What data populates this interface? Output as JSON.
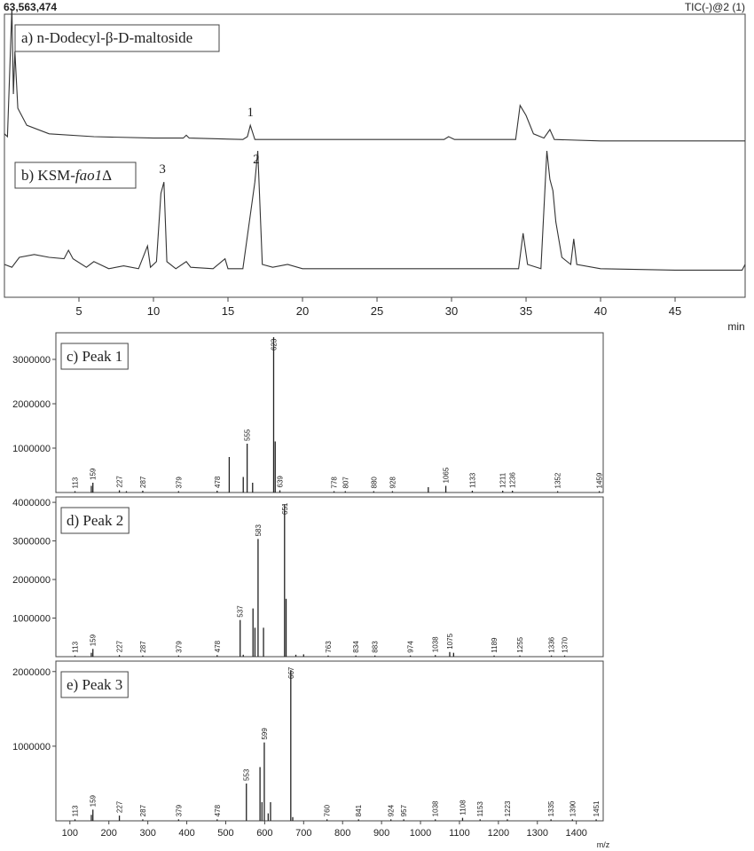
{
  "header": {
    "intensity": "63,563,474",
    "trace": "TIC(-)@2 (1)"
  },
  "chart_data": [
    {
      "type": "line",
      "title": "a) n-Dodecyl-β-D-maltoside",
      "x": [
        0,
        0.2,
        0.5,
        0.6,
        0.7,
        0.9,
        1.5,
        3,
        6,
        10,
        12,
        12.2,
        12.4,
        16,
        16.3,
        16.5,
        16.8,
        20,
        29.5,
        29.8,
        30.2,
        34.3,
        34.6,
        35,
        35.5,
        36.2,
        36.6,
        36.9,
        40,
        49.7
      ],
      "values": [
        12,
        10,
        100,
        40,
        70,
        30,
        18,
        12,
        10,
        9,
        9,
        11,
        9,
        8,
        10,
        18,
        8,
        8,
        8,
        10,
        8,
        8,
        32,
        25,
        12,
        9,
        15,
        8,
        7,
        7
      ],
      "xlim": [
        0,
        49.7
      ],
      "ylim": [
        0,
        100
      ],
      "color": "#333333",
      "annotations": [
        {
          "text": "1",
          "x": 16.5
        }
      ]
    },
    {
      "type": "line",
      "title": [
        "b) KSM-",
        "fao1",
        "Δ"
      ],
      "x": [
        0,
        0.5,
        1,
        2,
        3,
        4,
        4.3,
        4.6,
        5.5,
        6,
        7,
        8,
        9,
        9.6,
        9.8,
        10.2,
        10.5,
        10.7,
        10.9,
        11.5,
        12.2,
        12.5,
        14,
        14.8,
        15,
        16,
        16.8,
        17,
        17.3,
        18,
        19,
        20,
        25,
        30,
        34.5,
        34.8,
        35.1,
        36,
        36.4,
        36.6,
        36.8,
        37,
        37.4,
        38,
        38.2,
        38.4,
        40,
        45,
        49.5,
        49.7
      ],
      "values": [
        20,
        18,
        25,
        27,
        25,
        24,
        30,
        24,
        18,
        22,
        17,
        19,
        17,
        33,
        18,
        22,
        70,
        78,
        22,
        17,
        22,
        18,
        17,
        24,
        17,
        17,
        78,
        100,
        20,
        18,
        20,
        17,
        17,
        17,
        17,
        42,
        20,
        17,
        100,
        80,
        72,
        50,
        25,
        20,
        38,
        20,
        17,
        16,
        16,
        20
      ],
      "xlim": [
        0,
        49.7
      ],
      "ylim": [
        0,
        100
      ],
      "color": "#333333",
      "xticks": [
        5,
        10,
        15,
        20,
        25,
        30,
        35,
        40,
        45
      ],
      "xlabel": "min",
      "annotations": [
        {
          "text": "3",
          "x": 10.6
        },
        {
          "text": "2",
          "x": 16.9
        }
      ]
    },
    {
      "type": "stick",
      "title": "c) Peak 1",
      "x": [
        113,
        155,
        159,
        227,
        245,
        287,
        379,
        478,
        509,
        545,
        555,
        569,
        623,
        627,
        639,
        778,
        807,
        880,
        928,
        1020,
        1065,
        1133,
        1211,
        1236,
        1352,
        1459
      ],
      "values": [
        30000,
        150000,
        220000,
        50000,
        30000,
        40000,
        30000,
        40000,
        800000,
        350000,
        1100000,
        220000,
        3500000,
        1150000,
        50000,
        30000,
        30000,
        30000,
        30000,
        120000,
        150000,
        40000,
        40000,
        40000,
        30000,
        30000
      ],
      "x_labels": [
        113,
        null,
        159,
        227,
        null,
        287,
        379,
        478,
        null,
        null,
        555,
        null,
        623,
        null,
        639,
        778,
        807,
        880,
        928,
        null,
        1065,
        1133,
        1211,
        1236,
        1352,
        1459
      ],
      "xlim": [
        64,
        1469
      ],
      "ylim": [
        0,
        3600000
      ],
      "yticks": [
        1000000,
        2000000,
        3000000
      ],
      "color": "#222222"
    },
    {
      "type": "stick",
      "title": "d) Peak 2",
      "x": [
        113,
        155,
        159,
        227,
        287,
        379,
        478,
        537,
        545,
        570,
        575,
        583,
        597,
        651,
        655,
        680,
        700,
        763,
        834,
        883,
        974,
        1038,
        1075,
        1085,
        1189,
        1255,
        1336,
        1370
      ],
      "values": [
        30000,
        100000,
        200000,
        40000,
        30000,
        30000,
        40000,
        950000,
        50000,
        1250000,
        750000,
        3050000,
        750000,
        3950000,
        1500000,
        50000,
        60000,
        30000,
        30000,
        30000,
        30000,
        40000,
        120000,
        100000,
        30000,
        30000,
        30000,
        30000
      ],
      "x_labels": [
        113,
        null,
        159,
        227,
        287,
        379,
        478,
        537,
        null,
        null,
        null,
        583,
        null,
        651,
        null,
        null,
        null,
        763,
        834,
        883,
        974,
        1038,
        1075,
        null,
        1189,
        1255,
        1336,
        1370
      ],
      "xlim": [
        64,
        1469
      ],
      "ylim": [
        0,
        4140000
      ],
      "yticks": [
        1000000,
        2000000,
        3000000,
        4000000
      ],
      "color": "#222222"
    },
    {
      "type": "stick",
      "title": "e) Peak 3",
      "x": [
        113,
        155,
        159,
        227,
        287,
        379,
        478,
        553,
        588,
        593,
        599,
        609,
        615,
        667,
        672,
        760,
        841,
        924,
        957,
        1038,
        1108,
        1153,
        1223,
        1335,
        1390,
        1451
      ],
      "values": [
        20000,
        80000,
        150000,
        70000,
        20000,
        20000,
        20000,
        500000,
        720000,
        250000,
        1050000,
        100000,
        250000,
        2020000,
        50000,
        20000,
        20000,
        20000,
        20000,
        20000,
        40000,
        20000,
        20000,
        20000,
        20000,
        20000
      ],
      "x_labels": [
        113,
        null,
        159,
        227,
        287,
        379,
        478,
        553,
        null,
        null,
        599,
        null,
        null,
        667,
        null,
        760,
        841,
        924,
        957,
        1038,
        1108,
        1153,
        1223,
        1335,
        1390,
        1451
      ],
      "xlim": [
        64,
        1469
      ],
      "ylim": [
        0,
        2140000
      ],
      "yticks": [
        1000000,
        2000000
      ],
      "xticks": [
        100,
        200,
        300,
        400,
        500,
        600,
        700,
        800,
        900,
        1000,
        1100,
        1200,
        1300,
        1400
      ],
      "xlabel": "m/z",
      "color": "#222222"
    }
  ]
}
